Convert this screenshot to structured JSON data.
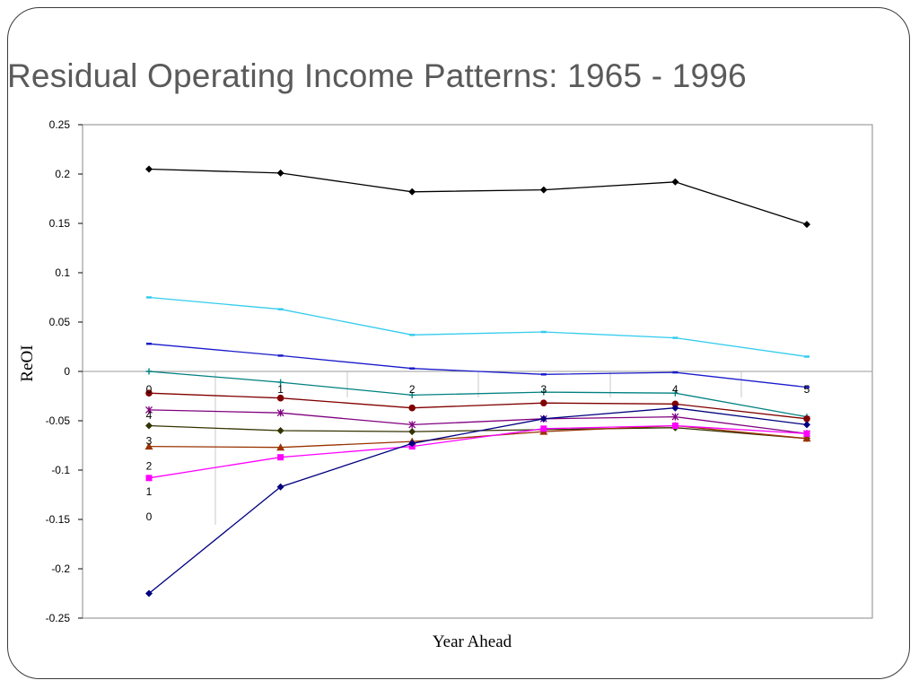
{
  "slide": {
    "title": "Residual Operating Income Patterns: 1965 - 1996"
  },
  "chart_data": {
    "type": "line",
    "xlabel": "Year Ahead",
    "ylabel": "ReOI",
    "ylim": [
      -0.25,
      0.25
    ],
    "yticks": [
      "0.25",
      "0.2",
      "0.15",
      "0.1",
      "0.05",
      "0",
      "-0.05",
      "-0.1",
      "-0.15",
      "-0.2",
      "-0.25"
    ],
    "x": [
      0,
      1,
      2,
      3,
      4,
      5
    ],
    "x_tick_labels": [
      "0",
      "1",
      "2",
      "3",
      "4",
      "5"
    ],
    "stray_labels": [
      "4",
      "3",
      "2",
      "1",
      "0"
    ],
    "grid": false,
    "series": [
      {
        "color": "#000000",
        "marker": "diamond",
        "values": [
          0.205,
          0.201,
          0.182,
          0.184,
          0.192,
          0.149
        ]
      },
      {
        "color": "#33CCEE",
        "marker": "dash",
        "values": [
          0.075,
          0.063,
          0.037,
          0.04,
          0.034,
          0.015
        ]
      },
      {
        "color": "#1a1acc",
        "marker": "dash",
        "values": [
          0.028,
          0.016,
          0.003,
          -0.003,
          -0.001,
          -0.016
        ]
      },
      {
        "color": "#008080",
        "marker": "plus",
        "values": [
          0.0,
          -0.011,
          -0.024,
          -0.021,
          -0.022,
          -0.046
        ]
      },
      {
        "color": "#800000",
        "marker": "circle",
        "values": [
          -0.022,
          -0.027,
          -0.037,
          -0.032,
          -0.033,
          -0.048
        ]
      },
      {
        "color": "#800080",
        "marker": "star",
        "values": [
          -0.039,
          -0.042,
          -0.054,
          -0.048,
          -0.046,
          -0.063
        ]
      },
      {
        "color": "#333300",
        "marker": "diamond",
        "values": [
          -0.055,
          -0.06,
          -0.061,
          -0.059,
          -0.057,
          -0.068
        ]
      },
      {
        "color": "#993300",
        "marker": "triangle",
        "values": [
          -0.076,
          -0.077,
          -0.071,
          -0.061,
          -0.055,
          -0.068
        ]
      },
      {
        "color": "#FF00FF",
        "marker": "square",
        "values": [
          -0.108,
          -0.087,
          -0.076,
          -0.058,
          -0.055,
          -0.063
        ]
      },
      {
        "color": "#000080",
        "marker": "diamond",
        "values": [
          -0.225,
          -0.117,
          -0.073,
          -0.048,
          -0.037,
          -0.054
        ]
      }
    ]
  }
}
